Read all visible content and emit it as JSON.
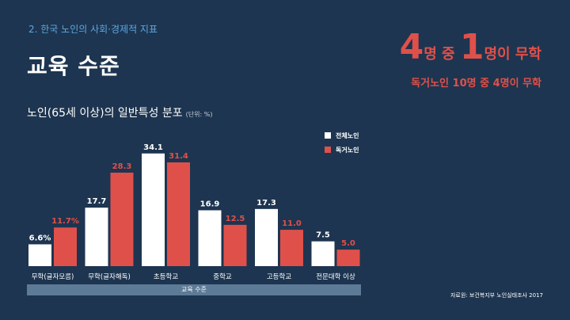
{
  "header": {
    "section": "2. 한국 노인의 사회·경제적 지표",
    "title": "교육 수준",
    "headline_num1": "4",
    "headline_mid1": "명 중 ",
    "headline_num2": "1",
    "headline_mid2": "명이 무학",
    "sub_headline": "독거노인 10명 중 4명이 무학"
  },
  "colors": {
    "all_elderly": "#ffffff",
    "living_alone": "#e0504a",
    "background": "#1d3550"
  },
  "chart_data": {
    "type": "bar",
    "title": "노인(65세 이상)의 일반특성 분포",
    "unit": "(단위: %)",
    "categories": [
      "무학(글자모름)",
      "무학(글자해독)",
      "초등학교",
      "중학교",
      "고등학교",
      "전문대학 이상"
    ],
    "series": [
      {
        "name": "전체노인",
        "values": [
          6.6,
          17.7,
          34.1,
          16.9,
          17.3,
          7.5
        ],
        "labels": [
          "6.6%",
          "17.7",
          "34.1",
          "16.9",
          "17.3",
          "7.5"
        ]
      },
      {
        "name": "독거노인",
        "values": [
          11.7,
          28.3,
          31.4,
          12.5,
          11.0,
          5.0
        ],
        "labels": [
          "11.7%",
          "28.3",
          "31.4",
          "12.5",
          "11.0",
          "5.0"
        ]
      }
    ],
    "xlabel": "교육 수준",
    "ylim": [
      0,
      35
    ],
    "legend_position": "top-right"
  },
  "footer": {
    "source": "자료원: 보건복지부 노인실태조사 2017"
  }
}
